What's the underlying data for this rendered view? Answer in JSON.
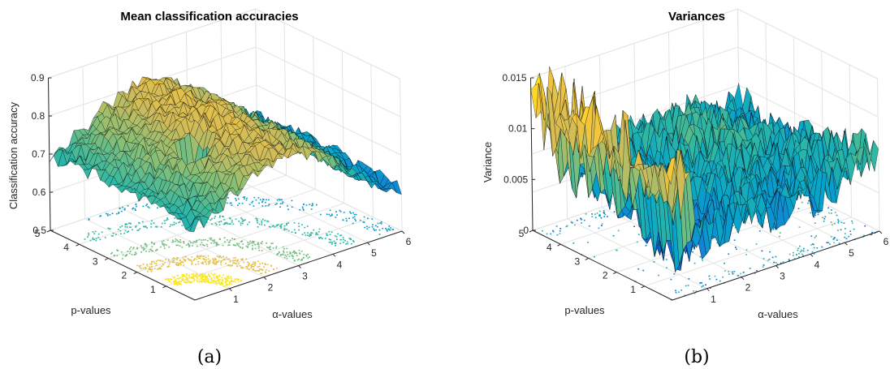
{
  "chart_data": [
    {
      "type": "surface",
      "title": "Mean classification accuracies",
      "xlabel": "α-values",
      "ylabel": "p-values",
      "zlabel": "Classification accuracy",
      "xlim": [
        0,
        6
      ],
      "ylim": [
        0,
        5
      ],
      "zlim": [
        0.5,
        0.9
      ],
      "xticks": [
        "1",
        "2",
        "3",
        "4",
        "5",
        "6"
      ],
      "yticks": [
        "1",
        "2",
        "3",
        "4",
        "5"
      ],
      "zticks": [
        "0.5",
        "0.6",
        "0.7",
        "0.8",
        "0.9"
      ],
      "grid": true,
      "colormap": "parula",
      "floor_contour": true,
      "surface_description": "ridge near 0.8 around alpha 2-3 with a sharp dip to about 0.56 near alpha 1.7, p 2; falls to about 0.66 at alpha 0 and about 0.58 at alpha 6",
      "caption": "(a)"
    },
    {
      "type": "surface",
      "title": "Variances",
      "xlabel": "α-values",
      "ylabel": "p-values",
      "zlabel": "Variance",
      "xlim": [
        0,
        6
      ],
      "ylim": [
        0,
        5
      ],
      "zlim": [
        0,
        0.015
      ],
      "xticks": [
        "1",
        "2",
        "3",
        "4",
        "5",
        "6"
      ],
      "yticks": [
        "1",
        "2",
        "3",
        "4",
        "5"
      ],
      "zticks": [
        "0",
        "0.005",
        "0.01",
        "0.015"
      ],
      "grid": true,
      "colormap": "parula",
      "floor_contour": true,
      "surface_description": "noisy surface mostly between 0.003 and 0.01; spikes to about 0.015 at small alpha; low values near alpha 1, p 1",
      "caption": "(b)"
    }
  ],
  "colors": {
    "parula": [
      "#352a87",
      "#0f5cdd",
      "#1481d6",
      "#06a4ca",
      "#2eb7a4",
      "#87bf77",
      "#d1bb59",
      "#fec832",
      "#f9fb0e"
    ],
    "surface_edge": "#000000",
    "grid": "#e3e3e3",
    "axis": "#262626"
  }
}
